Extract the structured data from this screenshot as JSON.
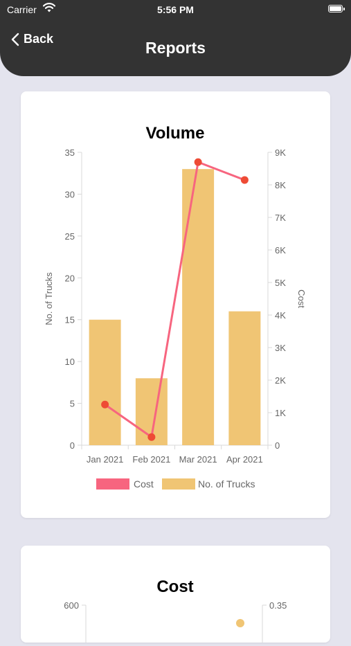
{
  "status_bar": {
    "carrier": "Carrier",
    "time": "5:56 PM"
  },
  "header": {
    "back_label": "Back",
    "title": "Reports"
  },
  "colors": {
    "header_bg": "#333333",
    "page_bg": "#e4e4ee",
    "bar": "#f0c574",
    "line": "#f7657f",
    "point": "#ee4b35"
  },
  "chart_data": [
    {
      "type": "bar",
      "title": "Volume",
      "categories": [
        "Jan 2021",
        "Feb 2021",
        "Mar 2021",
        "Apr 2021"
      ],
      "series": [
        {
          "name": "No. of Trucks",
          "type": "bar",
          "axis": "left",
          "values": [
            15,
            8,
            33,
            16
          ]
        },
        {
          "name": "Cost",
          "type": "line",
          "axis": "right",
          "values": [
            1250,
            250,
            8700,
            8150
          ]
        }
      ],
      "ylabel": "No. of Trucks",
      "ylim": [
        0,
        35
      ],
      "yticks": [
        "0",
        "5",
        "10",
        "15",
        "20",
        "25",
        "30",
        "35"
      ],
      "y2label": "Cost",
      "y2lim": [
        0,
        9000
      ],
      "y2ticks": [
        "0",
        "1K",
        "2K",
        "3K",
        "4K",
        "5K",
        "6K",
        "7K",
        "8K",
        "9K"
      ],
      "legend": [
        "Cost",
        "No. of Trucks"
      ],
      "legend_position": "bottom",
      "grid": false
    },
    {
      "type": "line",
      "title": "Cost",
      "ytick_top": "600",
      "y2tick_top": "0.35"
    }
  ]
}
